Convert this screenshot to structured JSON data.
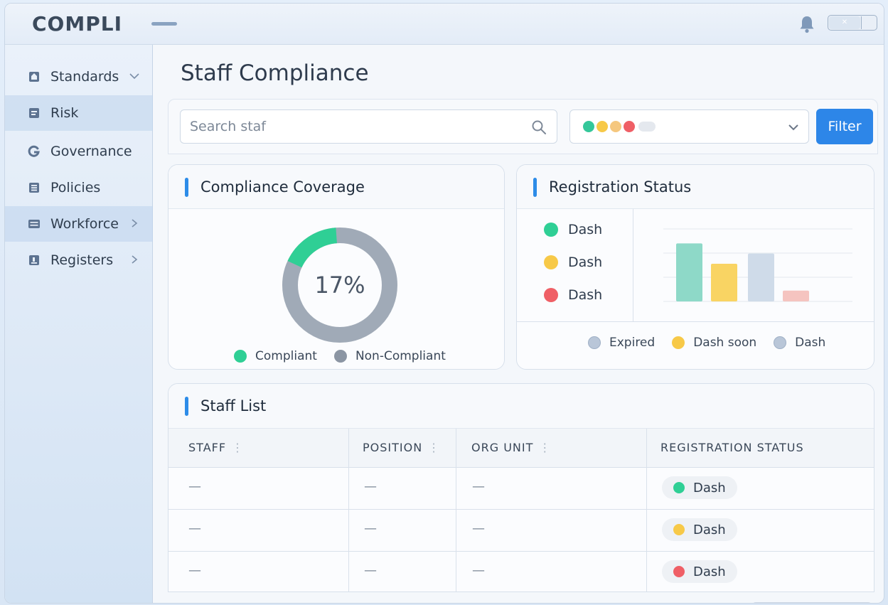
{
  "header": {
    "logo": "COMPLI",
    "icons": [
      "menu-icon",
      "bell-icon",
      "window-control"
    ]
  },
  "sidebar": {
    "items": [
      {
        "label": "Standards",
        "icon": "standards-icon",
        "caret": "down",
        "highlighted": false
      },
      {
        "label": "Risk",
        "icon": "risk-icon",
        "caret": "",
        "highlighted": true
      },
      {
        "label": "Governance",
        "icon": "governance-icon",
        "caret": "",
        "highlighted": false
      },
      {
        "label": "Policies",
        "icon": "policies-icon",
        "caret": "",
        "highlighted": false
      },
      {
        "label": "Workforce",
        "icon": "workforce-icon",
        "caret": "right",
        "highlighted": true
      },
      {
        "label": "Registers",
        "icon": "registers-icon",
        "caret": "right",
        "highlighted": false
      }
    ]
  },
  "main": {
    "title": "Staff Compliance",
    "search": {
      "placeholder": "Search staf"
    },
    "status_filter": {
      "dot_colors": [
        "#34c79a",
        "#f7c948",
        "#f5c77e",
        "#ef5f66"
      ]
    },
    "filter_label": "Filter"
  },
  "coverage": {
    "title": "Compliance Coverage",
    "percent_label": "17%",
    "legend": [
      {
        "label": "Compliant",
        "color": "#2fcf95"
      },
      {
        "label": "Non-Compliant",
        "color": "#8b95a3"
      }
    ]
  },
  "registration": {
    "title": "Registration Status",
    "status_list": [
      {
        "label": "Dash",
        "color": "#2fcf95"
      },
      {
        "label": "Dash",
        "color": "#f7c948"
      },
      {
        "label": "Dash",
        "color": "#ef5f66"
      }
    ],
    "legend": [
      {
        "label": "Expired",
        "color": "#b9c6d8"
      },
      {
        "label": "Dash soon",
        "color": "#f7c948"
      },
      {
        "label": "Dash",
        "color": "#b9c6d8"
      }
    ]
  },
  "chart_data": [
    {
      "type": "pie",
      "title": "Compliance Coverage",
      "labels": [
        "Compliant",
        "Non-Compliant"
      ],
      "values": [
        17,
        83
      ],
      "colors": [
        "#2fcf95",
        "#a0aab7"
      ],
      "center_label": "17%"
    },
    {
      "type": "bar",
      "categories": [
        "",
        "",
        "",
        ""
      ],
      "values": [
        4,
        2.6,
        3.3,
        0.75
      ],
      "colors": [
        "#8ed9c8",
        "#f9d463",
        "#cfdbe9",
        "#f5c4c0"
      ],
      "ylim": [
        0,
        5
      ],
      "grid": true,
      "legend": "bottom"
    }
  ],
  "staff": {
    "title": "Staff List",
    "columns": [
      "STAFF",
      "POSITION",
      "ORG UNIT",
      "REGISTRATION STATUS"
    ],
    "rows": [
      {
        "staff": "—",
        "position": "—",
        "org_unit": "—",
        "status": "Dash",
        "status_color": "#2fcf95"
      },
      {
        "staff": "—",
        "position": "—",
        "org_unit": "—",
        "status": "Dash",
        "status_color": "#f7c948"
      },
      {
        "staff": "—",
        "position": "—",
        "org_unit": "—",
        "status": "Dash",
        "status_color": "#ef5f66"
      }
    ]
  }
}
